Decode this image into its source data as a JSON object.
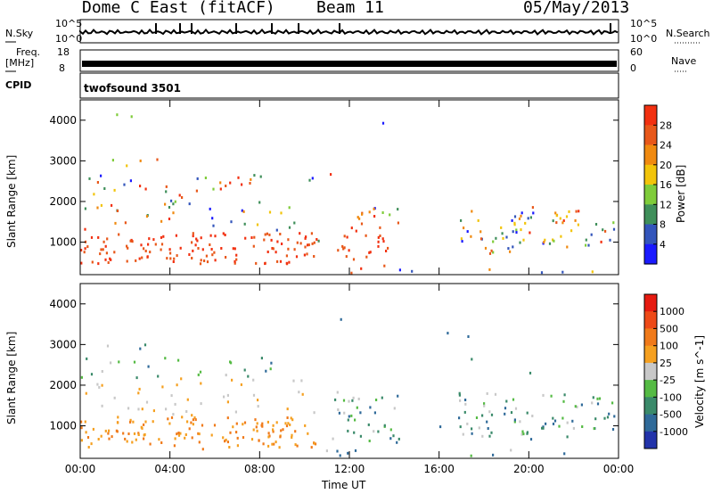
{
  "header": {
    "station": "Dome C East (fitACF)",
    "beam": "Beam 11",
    "date": "05/May/2013"
  },
  "top_panels": {
    "nsky_label": "N.Sky",
    "nsky_ticks": [
      "10^5",
      "10^0"
    ],
    "nsearch_label": "N.Search",
    "nsearch_ticks": [
      "10^5",
      "10^0"
    ],
    "freq_label": "Freq.",
    "freq_unit": "[MHz]",
    "freq_ticks": [
      "18",
      "8"
    ],
    "nave_label": "Nave",
    "nave_ticks": [
      "60",
      "0"
    ],
    "cpid_label": "CPID",
    "cpid_value": "twofsound 3501"
  },
  "chart_data": [
    {
      "type": "heatmap",
      "parameter": "Power",
      "ylabel": "Slant Range [km]",
      "yticks": [
        "1000",
        "2000",
        "3000",
        "4000"
      ],
      "ylim": [
        200,
        4500
      ],
      "xticks": [
        "00:00",
        "04:00",
        "08:00",
        "12:00",
        "16:00",
        "20:00",
        "00:00"
      ],
      "xlim_hours": [
        0,
        24
      ],
      "colorbar": {
        "label": "Power [dB]",
        "ticks": [
          "4",
          "8",
          "12",
          "16",
          "20",
          "24",
          "28"
        ],
        "colors": [
          "#1a1aff",
          "#3355bb",
          "#3f8f5a",
          "#7fcc3a",
          "#f2c40a",
          "#f08a10",
          "#e8581a",
          "#f23010"
        ]
      }
    },
    {
      "type": "heatmap",
      "parameter": "Velocity",
      "ylabel": "Slant Range [km]",
      "yticks": [
        "1000",
        "2000",
        "3000",
        "4000"
      ],
      "ylim": [
        200,
        4500
      ],
      "xticks": [
        "00:00",
        "04:00",
        "08:00",
        "12:00",
        "16:00",
        "20:00",
        "00:00"
      ],
      "xlim_hours": [
        0,
        24
      ],
      "xlabel": "Time UT",
      "colorbar": {
        "label": "Velocity [m s^-1]",
        "ticks": [
          "1000",
          "500",
          "100",
          "25",
          "-25",
          "-100",
          "-500",
          "-1000"
        ],
        "colors": [
          "#2233aa",
          "#2f6a99",
          "#3a8a6a",
          "#55bb44",
          "#c8c8c8",
          "#f5a020",
          "#f07a1a",
          "#ee4a18",
          "#e61a10"
        ]
      }
    }
  ]
}
